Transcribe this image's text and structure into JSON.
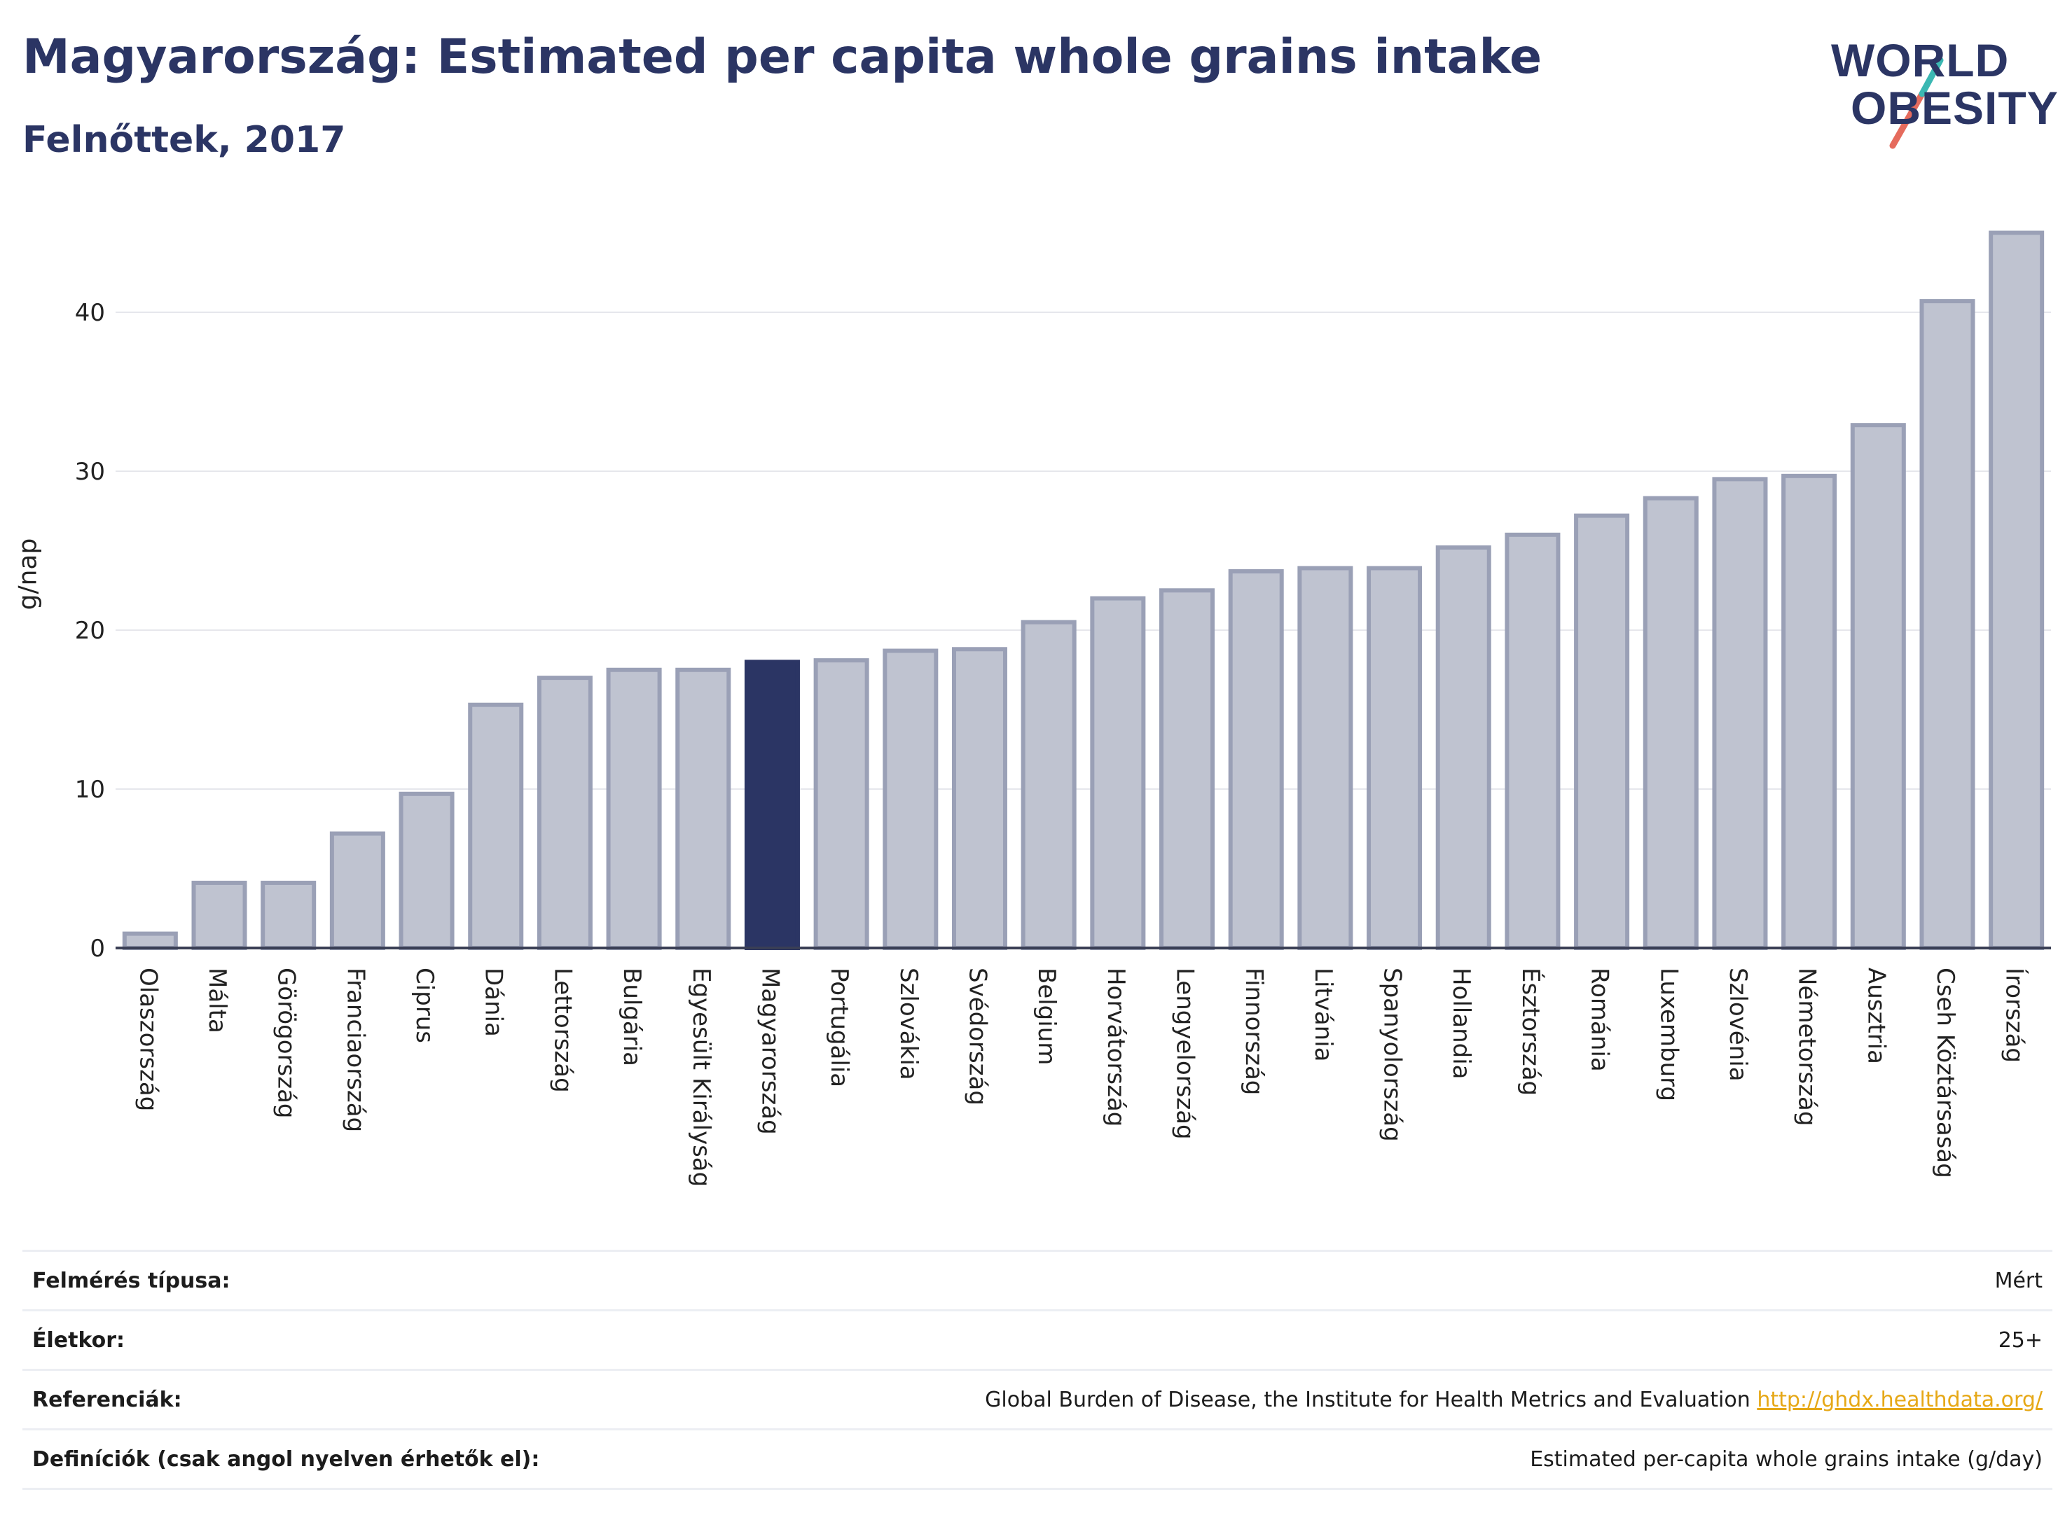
{
  "title": "Magyarország: Estimated per capita whole grains intake",
  "subtitle": "Felnőttek, 2017",
  "logo": {
    "line1": "WORLD",
    "line2": "OBESITY"
  },
  "colors": {
    "highlight": "#2b3564",
    "bar": "#bfc3d0",
    "bar_border": "#9aa0b6"
  },
  "chart_data": {
    "type": "bar",
    "ylabel": "g/nap",
    "ylim": [
      0,
      45
    ],
    "yticks": [
      0,
      10,
      20,
      30,
      40
    ],
    "grid": true,
    "highlight": "Magyarország",
    "categories": [
      "Olaszország",
      "Málta",
      "Görögország",
      "Franciaország",
      "Ciprus",
      "Dánia",
      "Lettország",
      "Bulgária",
      "Egyesült Királyság",
      "Magyarország",
      "Portugália",
      "Szlovákia",
      "Svédország",
      "Belgium",
      "Horvátország",
      "Lengyelország",
      "Finnország",
      "Litvánia",
      "Spanyolország",
      "Hollandia",
      "Észtország",
      "Románia",
      "Luxemburg",
      "Szlovénia",
      "Németország",
      "Ausztria",
      "Cseh Köztársaság",
      "Írország"
    ],
    "values": [
      0.9,
      4.1,
      4.1,
      7.2,
      9.7,
      15.3,
      17.0,
      17.5,
      17.5,
      18.0,
      18.1,
      18.7,
      18.8,
      20.5,
      22.0,
      22.5,
      23.7,
      23.9,
      23.9,
      25.2,
      26.0,
      27.2,
      28.3,
      29.5,
      29.7,
      32.9,
      40.7,
      45.0
    ]
  },
  "meta": [
    {
      "label": "Felmérés típusa:",
      "value": "Mért"
    },
    {
      "label": "Életkor:",
      "value": "25+"
    },
    {
      "label": "Referenciák:",
      "value": "Global Burden of Disease, the Institute for Health Metrics and Evaluation",
      "link": "http://ghdx.healthdata.org/"
    },
    {
      "label": "Definíciók (csak angol nyelven érhetők el):",
      "value": "Estimated per-capita whole grains intake (g/day)"
    }
  ]
}
